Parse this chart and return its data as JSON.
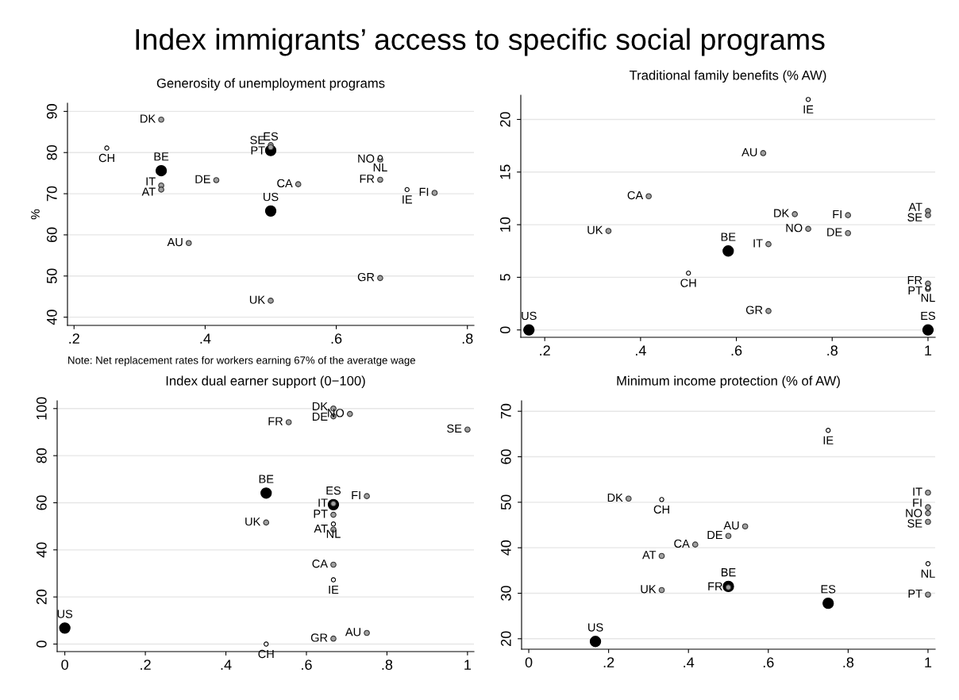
{
  "chart_data": [
    {
      "type": "scatter",
      "title": "Generosity of unemployment programs",
      "ylabel": "%",
      "xlim": [
        0.19,
        0.81
      ],
      "ylim": [
        38,
        92
      ],
      "xticks": [
        {
          "value": 0.2,
          "label": ".2"
        },
        {
          "value": 0.4,
          "label": ".4"
        },
        {
          "value": 0.6,
          "label": ".6"
        },
        {
          "value": 0.8,
          "label": ".8"
        }
      ],
      "yticks": [
        40,
        50,
        60,
        70,
        80,
        90
      ],
      "grid": "y",
      "legend": false,
      "marker": "circle",
      "series": [
        {
          "color": "#000000",
          "x": [
            0.333,
            0.5,
            0.5
          ],
          "values": [
            75.6,
            80.5,
            65.8
          ]
        },
        {
          "color": "#a0a0a0",
          "x": [
            0.333,
            0.5,
            0.5,
            0.333,
            0.333,
            0.417,
            0.375,
            0.542,
            0.667,
            0.667,
            0.75,
            0.667,
            0.5
          ],
          "values": [
            88.0,
            81.8,
            81.3,
            72.0,
            71.0,
            73.3,
            58.0,
            72.3,
            78.3,
            73.4,
            70.2,
            49.5,
            44.0
          ]
        },
        {
          "color": "#ffffff",
          "x": [
            0.25,
            0.667,
            0.708
          ],
          "values": [
            81.1,
            78.8,
            71.0
          ]
        }
      ],
      "annotations": [
        "Index immigrants’ access to specific social programs",
        "Note: Net replacement rates for workers earning 67% of the averatge wage",
        {
          "text": "BE",
          "x": 0.333,
          "y": 75.6
        },
        {
          "text": "ES",
          "x": 0.5,
          "y": 80.5
        },
        {
          "text": "US",
          "x": 0.5,
          "y": 65.8
        },
        {
          "text": "DK",
          "x": 0.333,
          "y": 88.0
        },
        {
          "text": "SE",
          "x": 0.5,
          "y": 81.8
        },
        {
          "text": "PT",
          "x": 0.5,
          "y": 81.3
        },
        {
          "text": "IT",
          "x": 0.333,
          "y": 72.0
        },
        {
          "text": "AT",
          "x": 0.333,
          "y": 71.0
        },
        {
          "text": "DE",
          "x": 0.417,
          "y": 73.3
        },
        {
          "text": "AU",
          "x": 0.375,
          "y": 58.0
        },
        {
          "text": "CA",
          "x": 0.542,
          "y": 72.3
        },
        {
          "text": "NO",
          "x": 0.667,
          "y": 78.3
        },
        {
          "text": "FR",
          "x": 0.667,
          "y": 73.4
        },
        {
          "text": "FI",
          "x": 0.75,
          "y": 70.2
        },
        {
          "text": "GR",
          "x": 0.667,
          "y": 49.5
        },
        {
          "text": "UK",
          "x": 0.5,
          "y": 44.0
        },
        {
          "text": "CH",
          "x": 0.25,
          "y": 81.1
        },
        {
          "text": "NL",
          "x": 0.667,
          "y": 78.8
        },
        {
          "text": "IE",
          "x": 0.708,
          "y": 71.0
        }
      ]
    },
    {
      "type": "scatter",
      "title": "Traditional family benefits (% AW)",
      "xlim": [
        0.15,
        1.015
      ],
      "ylim": [
        -0.7,
        22.3
      ],
      "xticks": [
        {
          "value": 0.2,
          "label": ".2"
        },
        {
          "value": 0.4,
          "label": ".4"
        },
        {
          "value": 0.6,
          "label": ".6"
        },
        {
          "value": 0.8,
          "label": ".8"
        },
        1
      ],
      "yticks": [
        0,
        5,
        10,
        15,
        20
      ],
      "grid": "y",
      "legend": false,
      "marker": "circle",
      "series": [
        {
          "color": "#000000",
          "x": [
            0.583,
            0.167,
            1
          ],
          "values": [
            7.5,
            0,
            0
          ]
        },
        {
          "color": "#a0a0a0",
          "x": [
            0.656,
            0.417,
            0.333,
            0.722,
            0.833,
            0.75,
            0.833,
            0.667,
            0.667,
            1,
            1,
            1,
            1
          ],
          "values": [
            16.8,
            12.7,
            9.4,
            11.0,
            10.9,
            9.6,
            9.2,
            8.15,
            1.8,
            11.3,
            10.9,
            4.4,
            3.9
          ]
        },
        {
          "color": "#ffffff",
          "x": [
            0.75,
            0.5,
            1
          ],
          "values": [
            21.9,
            5.4,
            4.0
          ]
        }
      ],
      "annotations": [
        {
          "text": "BE",
          "x": 0.583,
          "y": 7.5
        },
        {
          "text": "US",
          "x": 0.167,
          "y": 0
        },
        {
          "text": "ES",
          "x": 1,
          "y": 0
        },
        {
          "text": "AU",
          "x": 0.656,
          "y": 16.8
        },
        {
          "text": "CA",
          "x": 0.417,
          "y": 12.7
        },
        {
          "text": "UK",
          "x": 0.333,
          "y": 9.4
        },
        {
          "text": "DK",
          "x": 0.722,
          "y": 11.0
        },
        {
          "text": "FI",
          "x": 0.833,
          "y": 10.9
        },
        {
          "text": "NO",
          "x": 0.75,
          "y": 9.6
        },
        {
          "text": "DE",
          "x": 0.833,
          "y": 9.2
        },
        {
          "text": "IT",
          "x": 0.667,
          "y": 8.15
        },
        {
          "text": "GR",
          "x": 0.667,
          "y": 1.8
        },
        {
          "text": "AT",
          "x": 1,
          "y": 11.3
        },
        {
          "text": "SE",
          "x": 1,
          "y": 10.9
        },
        {
          "text": "FR",
          "x": 1,
          "y": 4.4
        },
        {
          "text": "PT",
          "x": 1,
          "y": 3.9
        },
        {
          "text": "IE",
          "x": 0.75,
          "y": 21.9
        },
        {
          "text": "CH",
          "x": 0.5,
          "y": 5.4
        },
        {
          "text": "NL",
          "x": 1,
          "y": 4.0
        }
      ]
    },
    {
      "type": "scatter",
      "title": "Index dual earner support (0−100)",
      "xlim": [
        -0.019,
        1.016
      ],
      "ylim": [
        -3.2,
        103.3
      ],
      "xticks": [
        0,
        {
          "value": 0.2,
          "label": ".2"
        },
        {
          "value": 0.4,
          "label": ".4"
        },
        {
          "value": 0.6,
          "label": ".6"
        },
        {
          "value": 0.8,
          "label": ".8"
        },
        1
      ],
      "yticks": [
        0,
        20,
        40,
        60,
        80,
        100
      ],
      "grid": "y",
      "legend": false,
      "marker": "circle",
      "series": [
        {
          "color": "#000000",
          "x": [
            0.5,
            0.667,
            0
          ],
          "values": [
            64.1,
            59.2,
            6.8
          ]
        },
        {
          "color": "#a0a0a0",
          "x": [
            0.667,
            0.667,
            0.708,
            0.556,
            1,
            0.667,
            0.75,
            0.667,
            0.667,
            0.5,
            0.667,
            0.667,
            0.75
          ],
          "values": [
            100,
            96.7,
            97.7,
            94.2,
            91.1,
            59.6,
            62.8,
            54.9,
            48.6,
            51.6,
            33.7,
            2.3,
            4.7
          ]
        },
        {
          "color": "#ffffff",
          "x": [
            0.667,
            0.667,
            0.5
          ],
          "values": [
            51.0,
            27.3,
            0
          ]
        }
      ],
      "annotations": [
        {
          "text": "BE",
          "x": 0.5,
          "y": 64.1
        },
        {
          "text": "ES",
          "x": 0.667,
          "y": 59.2
        },
        {
          "text": "US",
          "x": 0,
          "y": 6.8
        },
        {
          "text": "DK",
          "x": 0.667,
          "y": 100
        },
        {
          "text": "DE",
          "x": 0.667,
          "y": 96.7
        },
        {
          "text": "NO",
          "x": 0.708,
          "y": 97.7
        },
        {
          "text": "FR",
          "x": 0.556,
          "y": 94.2
        },
        {
          "text": "SE",
          "x": 1,
          "y": 91.1
        },
        {
          "text": "IT",
          "x": 0.667,
          "y": 59.6
        },
        {
          "text": "FI",
          "x": 0.75,
          "y": 62.8
        },
        {
          "text": "PT",
          "x": 0.667,
          "y": 54.9
        },
        {
          "text": "AT",
          "x": 0.667,
          "y": 48.6
        },
        {
          "text": "UK",
          "x": 0.5,
          "y": 51.6
        },
        {
          "text": "CA",
          "x": 0.667,
          "y": 33.7
        },
        {
          "text": "GR",
          "x": 0.667,
          "y": 2.3
        },
        {
          "text": "AU",
          "x": 0.75,
          "y": 4.7
        },
        {
          "text": "NL",
          "x": 0.667,
          "y": 51.0
        },
        {
          "text": "IE",
          "x": 0.667,
          "y": 27.3
        },
        {
          "text": "CH",
          "x": 0.5,
          "y": 0
        }
      ]
    },
    {
      "type": "scatter",
      "title": "Minimum income protection (% of AW)",
      "xlim": [
        -0.018,
        1.018
      ],
      "ylim": [
        17.7,
        72.3
      ],
      "xticks": [
        0,
        {
          "value": 0.2,
          "label": ".2"
        },
        {
          "value": 0.4,
          "label": ".4"
        },
        {
          "value": 0.6,
          "label": ".6"
        },
        {
          "value": 0.8,
          "label": ".8"
        },
        1
      ],
      "yticks": [
        20,
        30,
        40,
        50,
        60,
        70
      ],
      "grid": "y",
      "legend": false,
      "marker": "circle",
      "series": [
        {
          "color": "#000000",
          "x": [
            0.5,
            0.75,
            0.167
          ],
          "values": [
            31.5,
            27.8,
            19.4
          ]
        },
        {
          "color": "#a0a0a0",
          "x": [
            0.25,
            0.542,
            0.5,
            0.417,
            0.333,
            0.333,
            0.5,
            1,
            1,
            1,
            1,
            1
          ],
          "values": [
            50.8,
            44.7,
            42.6,
            40.7,
            38.2,
            30.7,
            31.3,
            52.1,
            48.9,
            47.6,
            45.7,
            29.7
          ]
        },
        {
          "color": "#ffffff",
          "x": [
            0.75,
            0.333,
            1
          ],
          "values": [
            65.8,
            50.6,
            36.5
          ]
        }
      ],
      "annotations": [
        {
          "text": "BE",
          "x": 0.5,
          "y": 31.5
        },
        {
          "text": "ES",
          "x": 0.75,
          "y": 27.8
        },
        {
          "text": "US",
          "x": 0.167,
          "y": 19.4
        },
        {
          "text": "DK",
          "x": 0.25,
          "y": 50.8
        },
        {
          "text": "AU",
          "x": 0.542,
          "y": 44.7
        },
        {
          "text": "DE",
          "x": 0.5,
          "y": 42.6
        },
        {
          "text": "CA",
          "x": 0.417,
          "y": 40.7
        },
        {
          "text": "AT",
          "x": 0.333,
          "y": 38.2
        },
        {
          "text": "UK",
          "x": 0.333,
          "y": 30.7
        },
        {
          "text": "FR",
          "x": 0.5,
          "y": 31.3
        },
        {
          "text": "IT",
          "x": 1,
          "y": 52.1
        },
        {
          "text": "FI",
          "x": 1,
          "y": 48.9
        },
        {
          "text": "NO",
          "x": 1,
          "y": 47.6
        },
        {
          "text": "SE",
          "x": 1,
          "y": 45.7
        },
        {
          "text": "PT",
          "x": 1,
          "y": 29.7
        },
        {
          "text": "IE",
          "x": 0.75,
          "y": 65.8
        },
        {
          "text": "CH",
          "x": 0.333,
          "y": 50.6
        },
        {
          "text": "NL",
          "x": 1,
          "y": 36.5
        }
      ]
    }
  ]
}
